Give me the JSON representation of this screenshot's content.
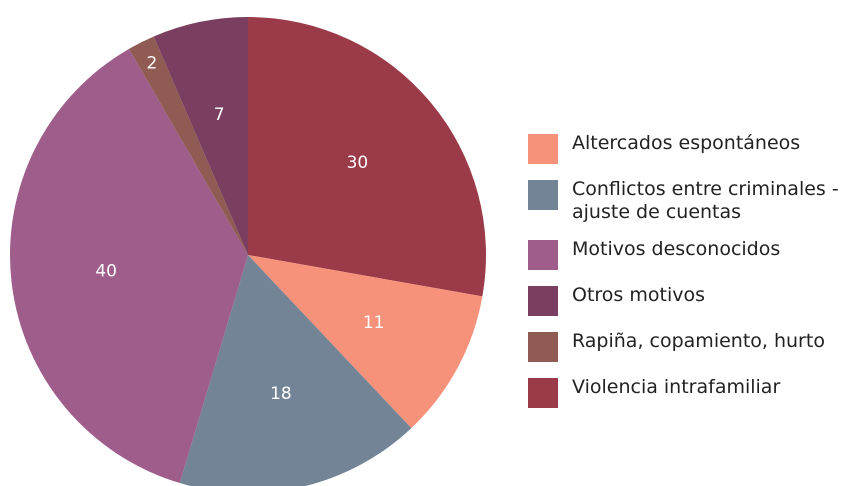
{
  "chart_data": {
    "type": "pie",
    "categories": [
      "Violencia intrafamiliar",
      "Altercados espontáneos",
      "Conflictos entre criminales - ajuste de cuentas",
      "Motivos desconocidos",
      "Rapiña, copamiento, hurto",
      "Otros motivos"
    ],
    "values": [
      30,
      11,
      18,
      40,
      2,
      7
    ],
    "colors": [
      "#9b3a48",
      "#f6917a",
      "#738497",
      "#9e5d8a",
      "#8f5b52",
      "#7a3f60"
    ],
    "legend": "right"
  }
}
